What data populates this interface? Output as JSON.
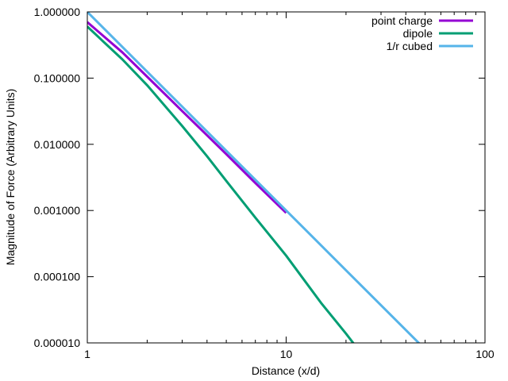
{
  "chart_data": {
    "type": "line",
    "title": "",
    "xlabel": "Distance (x/d)",
    "ylabel": "Magnitude of Force (Arbitrary Units)",
    "x_scale": "log",
    "y_scale": "log",
    "xlim": [
      1,
      100
    ],
    "ylim": [
      1e-05,
      1
    ],
    "grid": false,
    "legend_position": "top-right",
    "x_ticks": [
      {
        "value": 1,
        "label": "1"
      },
      {
        "value": 10,
        "label": "10"
      },
      {
        "value": 100,
        "label": "100"
      }
    ],
    "y_ticks": [
      {
        "value": 1,
        "label": "1.000000"
      },
      {
        "value": 0.1,
        "label": "0.100000"
      },
      {
        "value": 0.01,
        "label": "0.010000"
      },
      {
        "value": 0.001,
        "label": "0.001000"
      },
      {
        "value": 0.0001,
        "label": "0.000100"
      },
      {
        "value": 1e-05,
        "label": "0.000010"
      }
    ],
    "series": [
      {
        "name": "point charge",
        "color": "#9400d3",
        "x": [
          1,
          1.5,
          2,
          3,
          4,
          5,
          7,
          10
        ],
        "y": [
          0.7,
          0.245,
          0.105,
          0.0318,
          0.0137,
          0.0071,
          0.0026,
          0.00092
        ]
      },
      {
        "name": "dipole",
        "color": "#009e73",
        "x": [
          1,
          1.5,
          2,
          3,
          4,
          5,
          7,
          10,
          15,
          20,
          23
        ],
        "y": [
          0.6,
          0.192,
          0.078,
          0.0189,
          0.0066,
          0.0028,
          0.00078,
          0.000208,
          4e-05,
          1.38e-05,
          8e-06
        ]
      },
      {
        "name": "1/r cubed",
        "color": "#56b4e9",
        "x": [
          1,
          5,
          10,
          20,
          50
        ],
        "y": [
          1,
          0.008,
          0.001,
          0.000125,
          8e-06
        ]
      }
    ]
  }
}
